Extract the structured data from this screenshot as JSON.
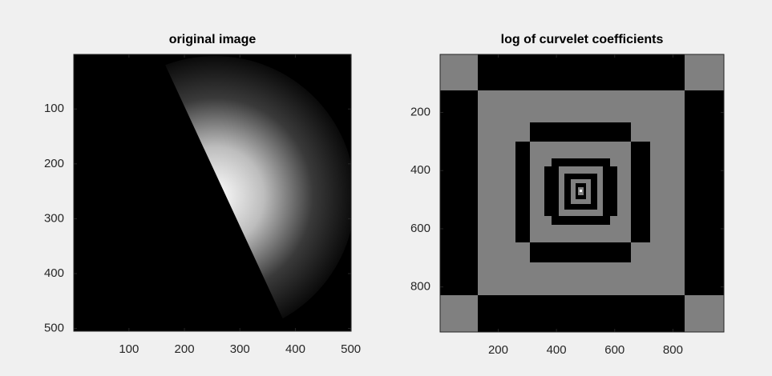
{
  "chart_data": [
    {
      "type": "image",
      "title": "original image",
      "xlim": [
        0.5,
        500.5
      ],
      "ylim": [
        0.5,
        505
      ],
      "y_reversed": true,
      "xticks": [
        100,
        200,
        300,
        400,
        500
      ],
      "yticks": [
        100,
        200,
        300,
        400,
        500
      ]
    },
    {
      "type": "image",
      "title": "log of curvelet coefficients",
      "xlim": [
        0.5,
        975
      ],
      "ylim": [
        0.5,
        955
      ],
      "y_reversed": true,
      "xticks": [
        200,
        400,
        600,
        800
      ],
      "yticks": [
        200,
        400,
        600,
        800
      ]
    }
  ]
}
